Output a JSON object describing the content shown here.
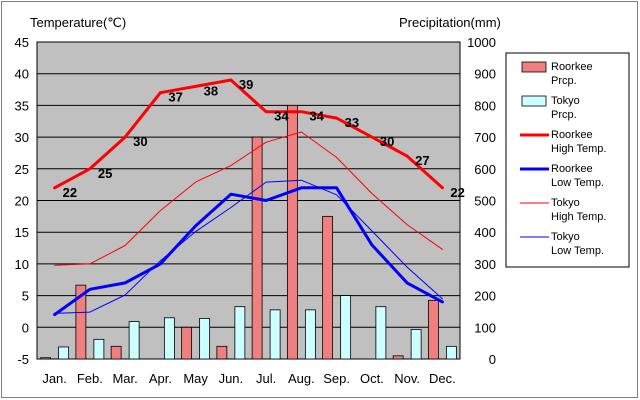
{
  "chart_data": {
    "type": "bar",
    "title": "",
    "left_axis_label": "Temperature(℃)",
    "right_axis_label": "Precipitation(mm)",
    "categories": [
      "Jan.",
      "Feb.",
      "Mar.",
      "Apr.",
      "May",
      "Jun.",
      "Jul.",
      "Aug.",
      "Sep.",
      "Oct.",
      "Nov.",
      "Dec."
    ],
    "temp_ylim": [
      -5,
      45
    ],
    "temp_ticks": [
      "45",
      "40",
      "35",
      "30",
      "25",
      "20",
      "15",
      "10",
      "5",
      "0",
      "-5"
    ],
    "precip_ylim": [
      0,
      1000
    ],
    "precip_ticks": [
      "1000",
      "900",
      "800",
      "700",
      "600",
      "500",
      "400",
      "300",
      "200",
      "100",
      "0"
    ],
    "grid": true,
    "legend_position": "right",
    "series": [
      {
        "name": "Roorkee Prcp.",
        "kind": "bar",
        "axis": "precip",
        "color": "#f08080",
        "values": [
          4,
          233,
          40,
          0,
          100,
          40,
          700,
          800,
          450,
          0,
          10,
          185
        ]
      },
      {
        "name": "Tokyo Prcp.",
        "kind": "bar",
        "axis": "precip",
        "color": "#ccffff",
        "values": [
          38,
          62,
          118,
          130,
          128,
          165,
          155,
          155,
          200,
          165,
          93,
          40
        ]
      },
      {
        "name": "Roorkee High Temp.",
        "kind": "line",
        "axis": "temp",
        "color": "#ff0000",
        "width": 3,
        "values": [
          22,
          25,
          30,
          37,
          38,
          39,
          34,
          34,
          33,
          30,
          27,
          22
        ],
        "labels": [
          "22",
          "25",
          "30",
          "37",
          "38",
          "39",
          "34",
          "34",
          "33",
          "30",
          "27",
          "22"
        ]
      },
      {
        "name": "Roorkee Low Temp.",
        "kind": "line",
        "axis": "temp",
        "color": "#0000ff",
        "width": 3,
        "values": [
          2,
          6,
          7,
          10,
          16,
          21,
          20,
          22,
          22,
          13,
          7,
          4
        ]
      },
      {
        "name": "Tokyo High Temp.",
        "kind": "line",
        "axis": "temp",
        "color": "#ff0000",
        "width": 1,
        "values": [
          9.8,
          10,
          12.9,
          18.4,
          22.9,
          25.5,
          29.2,
          30.8,
          26.8,
          21.1,
          16.2,
          12.3
        ]
      },
      {
        "name": "Tokyo Low Temp.",
        "kind": "line",
        "axis": "temp",
        "color": "#0000ff",
        "width": 1,
        "values": [
          2.2,
          2.4,
          5.1,
          10.5,
          15.1,
          18.9,
          22.9,
          23.2,
          20.9,
          15.2,
          9.5,
          4.5
        ]
      }
    ],
    "legend": [
      {
        "label1": "Roorkee",
        "label2": "Prcp.",
        "kind": "bar",
        "color": "#f08080"
      },
      {
        "label1": "Tokyo",
        "label2": "Prcp.",
        "kind": "bar",
        "color": "#ccffff"
      },
      {
        "label1": "Roorkee",
        "label2": "High Temp.",
        "kind": "line",
        "color": "#ff0000",
        "width": 3
      },
      {
        "label1": "Roorkee",
        "label2": "Low Temp.",
        "kind": "line",
        "color": "#0000ff",
        "width": 3
      },
      {
        "label1": "Tokyo",
        "label2": "High Temp.",
        "kind": "line",
        "color": "#ff0000",
        "width": 1
      },
      {
        "label1": "Tokyo",
        "label2": "Low Temp.",
        "kind": "line",
        "color": "#0000ff",
        "width": 1
      }
    ]
  }
}
